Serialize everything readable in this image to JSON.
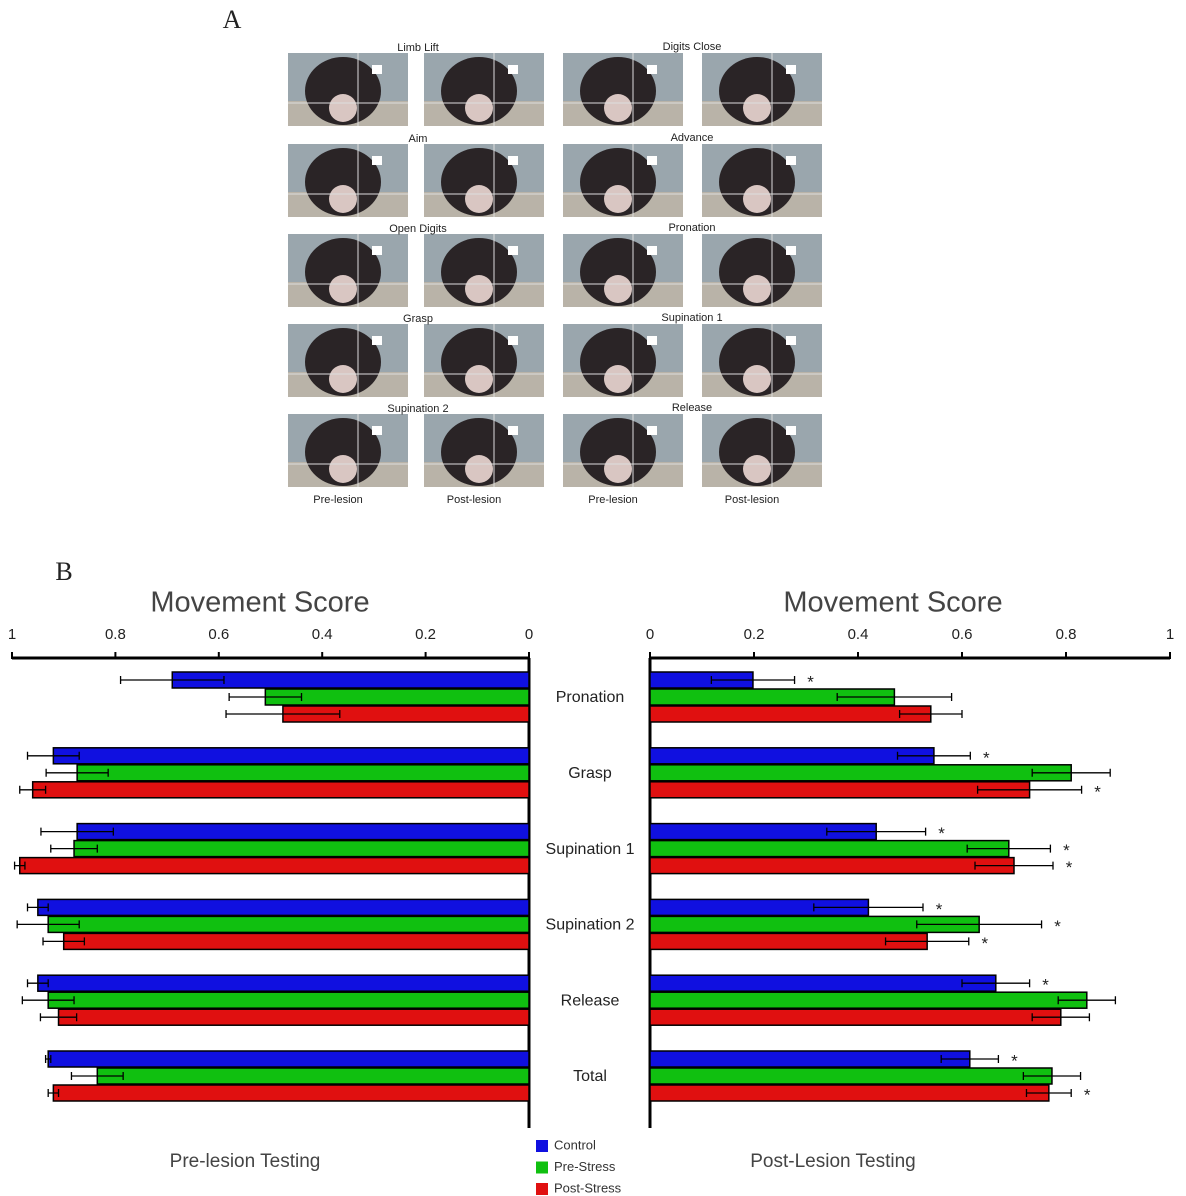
{
  "panel_a": {
    "label": "A",
    "phases": [
      "Limb Lift",
      "Digits Close",
      "Aim",
      "Advance",
      "Open Digits",
      "Pronation",
      "Grasp",
      "Supination 1",
      "Supination 2",
      "Release"
    ],
    "columns": [
      "Pre-lesion",
      "Post-lesion",
      "Pre-lesion",
      "Post-lesion"
    ]
  },
  "panel_b_label": "B",
  "chart_data": {
    "type": "bar",
    "orientation": "horizontal",
    "categories": [
      "Pronation",
      "Grasp",
      "Supination 1",
      "Supination 2",
      "Release",
      "Total"
    ],
    "series": [
      {
        "name": "Control",
        "color": "#1010e0"
      },
      {
        "name": "Pre-Stress",
        "color": "#10c010"
      },
      {
        "name": "Post-Stress",
        "color": "#e01010"
      }
    ],
    "panels": [
      {
        "title": "Movement Score",
        "xlabel": "Pre-lesion Testing",
        "xlim": [
          1,
          0
        ],
        "xticks": [
          1,
          0.8,
          0.6,
          0.4,
          0.2,
          0
        ],
        "series": [
          {
            "values": [
              0.69,
              0.92,
              0.874,
              0.95,
              0.95,
              0.93
            ],
            "errors": [
              0.1,
              0.05,
              0.07,
              0.02,
              0.02,
              0.005
            ]
          },
          {
            "values": [
              0.51,
              0.874,
              0.88,
              0.93,
              0.93,
              0.835
            ],
            "errors": [
              0.07,
              0.06,
              0.045,
              0.06,
              0.05,
              0.05
            ]
          },
          {
            "values": [
              0.476,
              0.96,
              0.985,
              0.9,
              0.91,
              0.92
            ],
            "errors": [
              0.11,
              0.025,
              0.01,
              0.04,
              0.035,
              0.01
            ]
          }
        ]
      },
      {
        "title": "Movement Score",
        "xlabel": "Post-Lesion Testing",
        "xlim": [
          0,
          1
        ],
        "xticks": [
          0,
          0.2,
          0.4,
          0.6,
          0.8,
          1
        ],
        "series": [
          {
            "values": [
              0.198,
              0.546,
              0.435,
              0.42,
              0.665,
              0.615
            ],
            "errors": [
              0.08,
              0.07,
              0.095,
              0.105,
              0.065,
              0.055
            ],
            "markers": [
              "*",
              "*",
              "*",
              "*",
              "*",
              "*"
            ]
          },
          {
            "values": [
              0.47,
              0.81,
              0.69,
              0.633,
              0.84,
              0.773
            ],
            "errors": [
              0.11,
              0.075,
              0.08,
              0.12,
              0.055,
              0.055
            ],
            "markers": [
              null,
              null,
              "*",
              "*",
              null,
              null
            ]
          },
          {
            "values": [
              0.54,
              0.73,
              0.7,
              0.533,
              0.79,
              0.767
            ],
            "errors": [
              0.06,
              0.1,
              0.075,
              0.08,
              0.055,
              0.043
            ],
            "markers": [
              null,
              "*",
              "*",
              "*",
              null,
              "*"
            ]
          }
        ]
      }
    ]
  }
}
